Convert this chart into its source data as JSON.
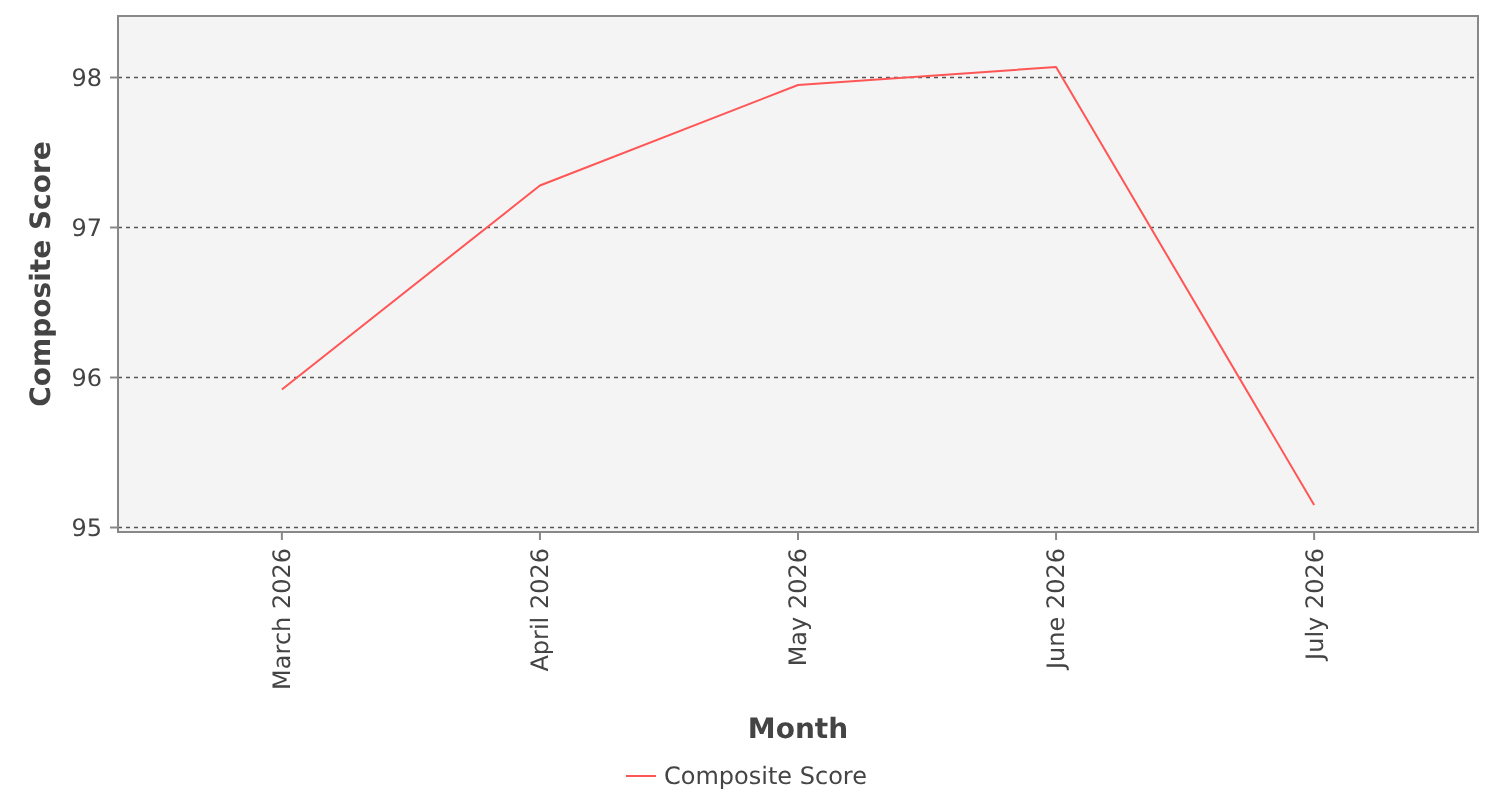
{
  "chart_data": {
    "type": "line",
    "xlabel": "Month",
    "ylabel": "Composite Score",
    "categories": [
      "March 2026",
      "April 2026",
      "May 2026",
      "June 2026",
      "July 2026"
    ],
    "series": [
      {
        "name": "Composite Score",
        "color": "#ff5555",
        "values": [
          95.92,
          97.28,
          97.95,
          98.07,
          95.15
        ]
      }
    ],
    "ylim": [
      94.97,
      98.41
    ],
    "yticks": [
      95,
      96,
      97,
      98
    ],
    "grid": "y",
    "legend": "bottom",
    "marker": "none",
    "line_style": "solid"
  }
}
